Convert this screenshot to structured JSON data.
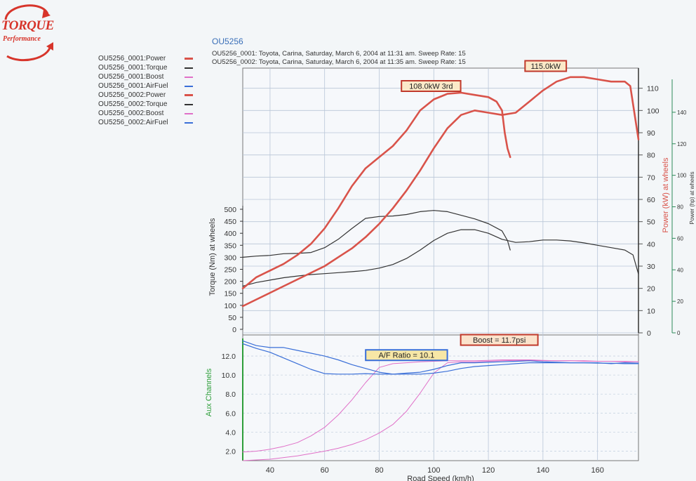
{
  "logo": {
    "line1": "TORQUE",
    "line2": "Performance"
  },
  "header": {
    "title": "OU5256",
    "runs": [
      "OU5256_0001: Toyota, Carina, Saturday, March 6, 2004  at  11:31 am.  Sweep Rate: 15",
      "OU5256_0002: Toyota, Carina, Saturday, March 6, 2004  at  11:35 am.  Sweep Rate: 15"
    ]
  },
  "legend": [
    {
      "label": "OU5256_0001:Power",
      "color": "#d9534a"
    },
    {
      "label": "OU5256_0001:Torque",
      "color": "#333333"
    },
    {
      "label": "OU5256_0001:Boost",
      "color": "#e070c8"
    },
    {
      "label": "OU5256_0001:AirFuel",
      "color": "#3a6fd8"
    },
    {
      "label": "OU5256_0002:Power",
      "color": "#d9534a"
    },
    {
      "label": "OU5256_0002:Torque",
      "color": "#333333"
    },
    {
      "label": "OU5256_0002:Boost",
      "color": "#e070c8"
    },
    {
      "label": "OU5256_0002:AirFuel",
      "color": "#3a6fd8"
    }
  ],
  "chart_data": {
    "type": "line",
    "xlabel": "Road Speed (km/h)",
    "xlim": [
      30,
      175
    ],
    "x_ticks": [
      40,
      60,
      80,
      100,
      120,
      140,
      160
    ],
    "axes": {
      "torque": {
        "label": "Torque (Nm) at wheels",
        "range": [
          0,
          500
        ],
        "ticks": [
          0,
          50,
          100,
          150,
          200,
          250,
          300,
          350,
          400,
          450,
          500
        ]
      },
      "power_kw": {
        "label": "Power (kW) at wheels",
        "range": [
          0,
          120
        ],
        "ticks": [
          0,
          10,
          20,
          30,
          40,
          50,
          60,
          70,
          80,
          90,
          100,
          110
        ]
      },
      "power_hp": {
        "label": "Power (hp) at wheels",
        "range": [
          0,
          160
        ],
        "ticks": [
          0,
          20,
          40,
          60,
          80,
          100,
          120,
          140
        ]
      },
      "aux": {
        "label": "Aux Channels",
        "range": [
          1,
          14
        ],
        "ticks": [
          "2.0",
          "4.0",
          "6.0",
          "8.0",
          "10.0",
          "12.0"
        ]
      }
    },
    "annotations": [
      {
        "text": "108.0kW 3rd",
        "x": 99,
        "y": 111,
        "axis": "power_kw",
        "border": "#c0392b",
        "fill": "#fbe9c8"
      },
      {
        "text": "115.0kW",
        "x": 141,
        "y": 120,
        "axis": "power_kw",
        "border": "#c0392b",
        "fill": "#fbe9c8"
      },
      {
        "text": "A/F Ratio = 10.1",
        "x": 90,
        "y": 12.1,
        "axis": "aux",
        "border": "#3a6fd8",
        "fill": "#f7e7a6"
      },
      {
        "text": "Boost = 11.7psi",
        "x": 124,
        "y": 13.7,
        "axis": "aux",
        "border": "#c0392b",
        "fill": "#fbe3cc"
      }
    ],
    "series": [
      {
        "name": "OU5256_0001:Power",
        "axis": "power_kw",
        "color": "#d9534a",
        "width": 2.6,
        "points": [
          [
            30,
            20
          ],
          [
            35,
            25
          ],
          [
            40,
            28
          ],
          [
            45,
            31
          ],
          [
            50,
            35
          ],
          [
            55,
            40
          ],
          [
            60,
            47
          ],
          [
            65,
            56
          ],
          [
            70,
            66
          ],
          [
            75,
            74
          ],
          [
            80,
            79
          ],
          [
            85,
            84
          ],
          [
            90,
            91
          ],
          [
            95,
            100
          ],
          [
            100,
            105
          ],
          [
            105,
            107.5
          ],
          [
            110,
            108
          ],
          [
            115,
            107
          ],
          [
            120,
            106
          ],
          [
            123,
            104
          ],
          [
            125,
            100
          ],
          [
            126,
            90
          ],
          [
            127,
            83
          ],
          [
            128,
            79
          ]
        ]
      },
      {
        "name": "OU5256_0002:Power",
        "axis": "power_kw",
        "color": "#d9534a",
        "width": 2.6,
        "points": [
          [
            30,
            12
          ],
          [
            35,
            15
          ],
          [
            40,
            18
          ],
          [
            45,
            21
          ],
          [
            50,
            24
          ],
          [
            55,
            27
          ],
          [
            60,
            30
          ],
          [
            65,
            34
          ],
          [
            70,
            38
          ],
          [
            75,
            43
          ],
          [
            80,
            49
          ],
          [
            85,
            56
          ],
          [
            90,
            64
          ],
          [
            95,
            73
          ],
          [
            100,
            83
          ],
          [
            105,
            92
          ],
          [
            110,
            98
          ],
          [
            115,
            100
          ],
          [
            120,
            99
          ],
          [
            125,
            98
          ],
          [
            130,
            99
          ],
          [
            135,
            104
          ],
          [
            140,
            109
          ],
          [
            145,
            113
          ],
          [
            150,
            115
          ],
          [
            155,
            115
          ],
          [
            160,
            114
          ],
          [
            165,
            113
          ],
          [
            170,
            113
          ],
          [
            172,
            111
          ],
          [
            174,
            95
          ],
          [
            175,
            87
          ]
        ]
      },
      {
        "name": "OU5256_0001:Torque",
        "axis": "torque",
        "color": "#333333",
        "width": 1.2,
        "points": [
          [
            30,
            300
          ],
          [
            35,
            305
          ],
          [
            40,
            308
          ],
          [
            45,
            315
          ],
          [
            50,
            316
          ],
          [
            55,
            320
          ],
          [
            60,
            340
          ],
          [
            65,
            375
          ],
          [
            70,
            420
          ],
          [
            75,
            462
          ],
          [
            80,
            470
          ],
          [
            85,
            472
          ],
          [
            90,
            478
          ],
          [
            95,
            490
          ],
          [
            100,
            495
          ],
          [
            105,
            490
          ],
          [
            110,
            475
          ],
          [
            115,
            460
          ],
          [
            120,
            440
          ],
          [
            125,
            410
          ],
          [
            127,
            370
          ],
          [
            128,
            330
          ]
        ]
      },
      {
        "name": "OU5256_0002:Torque",
        "axis": "torque",
        "color": "#333333",
        "width": 1.2,
        "points": [
          [
            30,
            180
          ],
          [
            35,
            195
          ],
          [
            40,
            205
          ],
          [
            45,
            215
          ],
          [
            50,
            222
          ],
          [
            55,
            228
          ],
          [
            60,
            232
          ],
          [
            65,
            236
          ],
          [
            70,
            240
          ],
          [
            75,
            245
          ],
          [
            80,
            255
          ],
          [
            85,
            270
          ],
          [
            90,
            295
          ],
          [
            95,
            330
          ],
          [
            100,
            370
          ],
          [
            105,
            400
          ],
          [
            110,
            415
          ],
          [
            115,
            415
          ],
          [
            120,
            400
          ],
          [
            125,
            375
          ],
          [
            130,
            362
          ],
          [
            135,
            365
          ],
          [
            140,
            372
          ],
          [
            145,
            372
          ],
          [
            150,
            368
          ],
          [
            155,
            360
          ],
          [
            160,
            350
          ],
          [
            165,
            340
          ],
          [
            170,
            330
          ],
          [
            173,
            310
          ],
          [
            175,
            230
          ]
        ]
      },
      {
        "name": "OU5256_0001:AirFuel",
        "axis": "aux",
        "color": "#3a6fd8",
        "width": 1.2,
        "points": [
          [
            30,
            13.6
          ],
          [
            35,
            13.1
          ],
          [
            40,
            12.9
          ],
          [
            45,
            12.9
          ],
          [
            50,
            12.6
          ],
          [
            55,
            12.3
          ],
          [
            60,
            12.0
          ],
          [
            65,
            11.6
          ],
          [
            70,
            11.1
          ],
          [
            75,
            10.7
          ],
          [
            80,
            10.3
          ],
          [
            85,
            10.1
          ],
          [
            90,
            10.2
          ],
          [
            95,
            10.3
          ],
          [
            100,
            10.6
          ],
          [
            105,
            11.0
          ],
          [
            110,
            11.3
          ],
          [
            115,
            11.3
          ],
          [
            120,
            11.35
          ],
          [
            125,
            11.4
          ],
          [
            130,
            11.45
          ],
          [
            135,
            11.5
          ],
          [
            140,
            11.4
          ],
          [
            145,
            11.35
          ],
          [
            150,
            11.3
          ],
          [
            155,
            11.3
          ],
          [
            160,
            11.3
          ],
          [
            165,
            11.2
          ],
          [
            170,
            11.3
          ],
          [
            175,
            11.25
          ]
        ]
      },
      {
        "name": "OU5256_0002:AirFuel",
        "axis": "aux",
        "color": "#3a6fd8",
        "width": 1.2,
        "points": [
          [
            30,
            13.3
          ],
          [
            35,
            12.8
          ],
          [
            40,
            12.4
          ],
          [
            45,
            11.8
          ],
          [
            50,
            11.2
          ],
          [
            55,
            10.6
          ],
          [
            60,
            10.15
          ],
          [
            65,
            10.1
          ],
          [
            70,
            10.1
          ],
          [
            75,
            10.15
          ],
          [
            80,
            10.1
          ],
          [
            85,
            10.1
          ],
          [
            90,
            10.1
          ],
          [
            95,
            10.1
          ],
          [
            100,
            10.2
          ],
          [
            105,
            10.4
          ],
          [
            110,
            10.7
          ],
          [
            115,
            10.9
          ],
          [
            120,
            11.0
          ],
          [
            125,
            11.1
          ],
          [
            130,
            11.2
          ],
          [
            135,
            11.3
          ],
          [
            140,
            11.3
          ],
          [
            145,
            11.3
          ],
          [
            150,
            11.3
          ],
          [
            155,
            11.3
          ],
          [
            160,
            11.25
          ],
          [
            165,
            11.25
          ],
          [
            170,
            11.2
          ],
          [
            175,
            11.2
          ]
        ]
      },
      {
        "name": "OU5256_0001:Boost",
        "axis": "aux",
        "color": "#e070c8",
        "width": 1.0,
        "points": [
          [
            30,
            1.9
          ],
          [
            35,
            2.0
          ],
          [
            40,
            2.2
          ],
          [
            45,
            2.5
          ],
          [
            50,
            2.9
          ],
          [
            55,
            3.6
          ],
          [
            60,
            4.5
          ],
          [
            65,
            5.8
          ],
          [
            70,
            7.4
          ],
          [
            75,
            9.2
          ],
          [
            80,
            10.8
          ],
          [
            85,
            11.2
          ],
          [
            90,
            11.3
          ],
          [
            95,
            11.4
          ],
          [
            100,
            11.45
          ],
          [
            105,
            11.5
          ],
          [
            110,
            11.5
          ],
          [
            115,
            11.5
          ],
          [
            120,
            11.55
          ],
          [
            125,
            11.6
          ],
          [
            130,
            11.6
          ],
          [
            135,
            11.6
          ],
          [
            140,
            11.55
          ],
          [
            145,
            11.5
          ],
          [
            150,
            11.5
          ],
          [
            155,
            11.5
          ],
          [
            160,
            11.45
          ],
          [
            165,
            11.45
          ],
          [
            170,
            11.45
          ],
          [
            175,
            11.4
          ]
        ]
      },
      {
        "name": "OU5256_0002:Boost",
        "axis": "aux",
        "color": "#e070c8",
        "width": 1.0,
        "points": [
          [
            30,
            1.0
          ],
          [
            40,
            1.15
          ],
          [
            50,
            1.5
          ],
          [
            60,
            2.0
          ],
          [
            65,
            2.3
          ],
          [
            70,
            2.7
          ],
          [
            75,
            3.2
          ],
          [
            80,
            3.9
          ],
          [
            85,
            4.8
          ],
          [
            90,
            6.2
          ],
          [
            95,
            8.1
          ],
          [
            100,
            10.2
          ],
          [
            105,
            11.3
          ],
          [
            110,
            11.4
          ],
          [
            115,
            11.4
          ],
          [
            120,
            11.45
          ],
          [
            125,
            11.5
          ],
          [
            130,
            11.55
          ],
          [
            135,
            11.55
          ],
          [
            140,
            11.5
          ],
          [
            145,
            11.5
          ],
          [
            150,
            11.5
          ],
          [
            155,
            11.45
          ],
          [
            160,
            11.45
          ],
          [
            165,
            11.45
          ],
          [
            170,
            11.4
          ],
          [
            175,
            11.4
          ]
        ]
      }
    ]
  }
}
